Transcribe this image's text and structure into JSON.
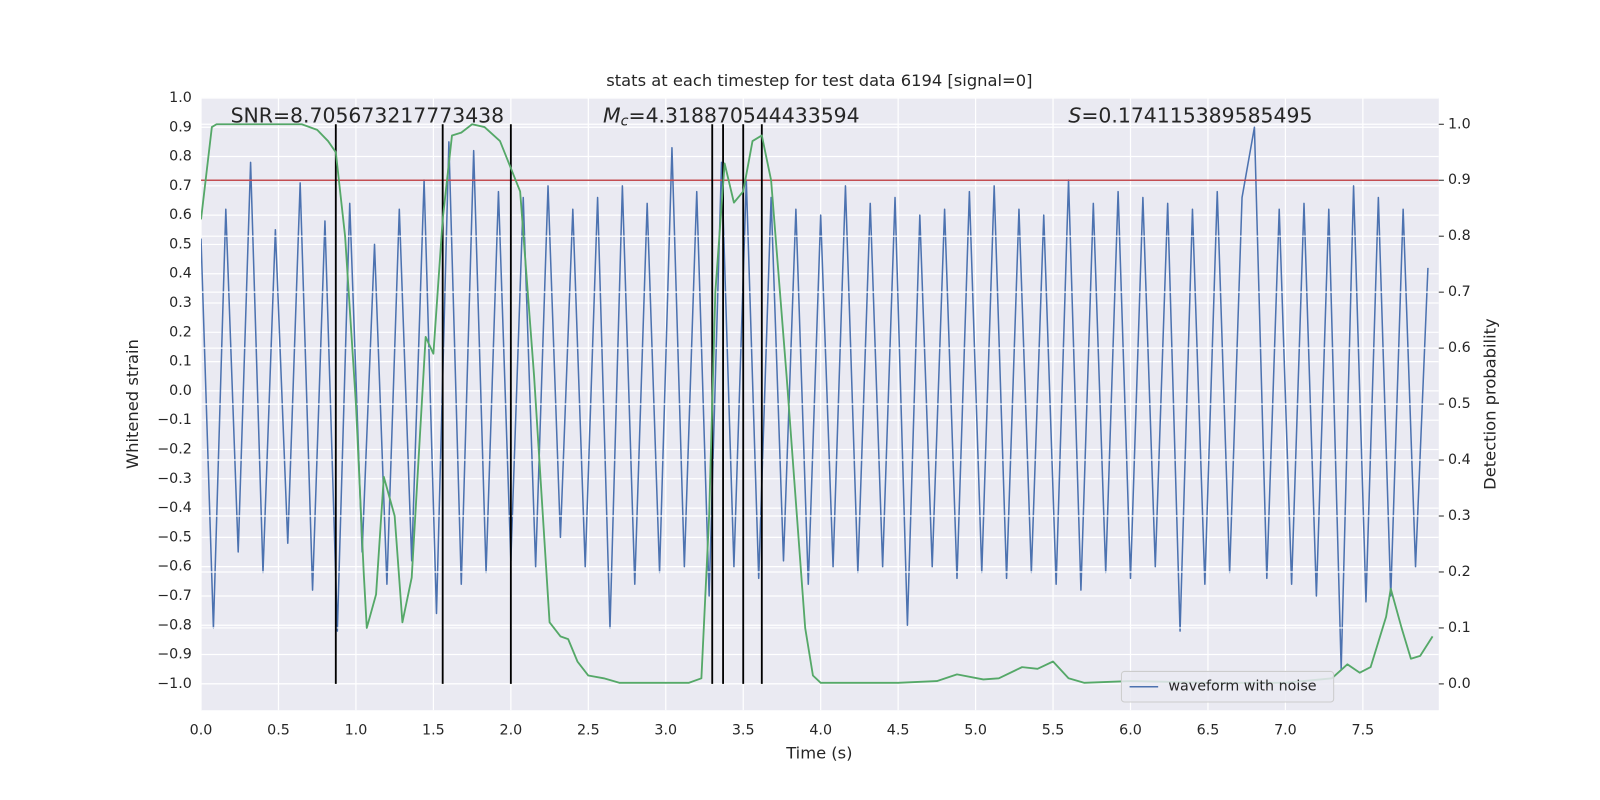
{
  "chart_data": {
    "type": "line",
    "title": "stats at each timestep for test data 6194 [signal=0]",
    "xlabel": "Time (s)",
    "ylabel": "Whitened strain",
    "y2label": "Detection probability",
    "xlim": [
      0,
      7.99
    ],
    "ylim": [
      -1.09,
      1.0
    ],
    "y2lim": [
      -0.047,
      1.047
    ],
    "xticks": [
      {
        "value": 0,
        "label": "0.0"
      },
      {
        "value": 0.5,
        "label": "0.5"
      },
      {
        "value": 1,
        "label": "1.0"
      },
      {
        "value": 1.5,
        "label": "1.5"
      },
      {
        "value": 2,
        "label": "2.0"
      },
      {
        "value": 2.5,
        "label": "2.5"
      },
      {
        "value": 3,
        "label": "3.0"
      },
      {
        "value": 3.5,
        "label": "3.5"
      },
      {
        "value": 4,
        "label": "4.0"
      },
      {
        "value": 4.5,
        "label": "4.5"
      },
      {
        "value": 5,
        "label": "5.0"
      },
      {
        "value": 5.5,
        "label": "5.5"
      },
      {
        "value": 6,
        "label": "6.0"
      },
      {
        "value": 6.5,
        "label": "6.5"
      },
      {
        "value": 7,
        "label": "7.0"
      },
      {
        "value": 7.5,
        "label": "7.5"
      }
    ],
    "yticks": [
      {
        "value": -1,
        "label": "−1.0"
      },
      {
        "value": -0.9,
        "label": "−0.9"
      },
      {
        "value": -0.8,
        "label": "−0.8"
      },
      {
        "value": -0.7,
        "label": "−0.7"
      },
      {
        "value": -0.6,
        "label": "−0.6"
      },
      {
        "value": -0.5,
        "label": "−0.5"
      },
      {
        "value": -0.4,
        "label": "−0.4"
      },
      {
        "value": -0.3,
        "label": "−0.3"
      },
      {
        "value": -0.2,
        "label": "−0.2"
      },
      {
        "value": -0.1,
        "label": "−0.1"
      },
      {
        "value": 0,
        "label": "0.0"
      },
      {
        "value": 0.1,
        "label": "0.1"
      },
      {
        "value": 0.2,
        "label": "0.2"
      },
      {
        "value": 0.3,
        "label": "0.3"
      },
      {
        "value": 0.4,
        "label": "0.4"
      },
      {
        "value": 0.5,
        "label": "0.5"
      },
      {
        "value": 0.6,
        "label": "0.6"
      },
      {
        "value": 0.7,
        "label": "0.7"
      },
      {
        "value": 0.8,
        "label": "0.8"
      },
      {
        "value": 0.9,
        "label": "0.9"
      },
      {
        "value": 1,
        "label": "1.0"
      }
    ],
    "y2ticks": [
      {
        "value": 0,
        "label": "0.0"
      },
      {
        "value": 0.1,
        "label": "0.1"
      },
      {
        "value": 0.2,
        "label": "0.2"
      },
      {
        "value": 0.3,
        "label": "0.3"
      },
      {
        "value": 0.4,
        "label": "0.4"
      },
      {
        "value": 0.5,
        "label": "0.5"
      },
      {
        "value": 0.6,
        "label": "0.6"
      },
      {
        "value": 0.7,
        "label": "0.7"
      },
      {
        "value": 0.8,
        "label": "0.8"
      },
      {
        "value": 0.9,
        "label": "0.9"
      },
      {
        "value": 1,
        "label": "1.0"
      }
    ],
    "grid": true,
    "legend": "lower right",
    "annotations": [
      {
        "parts": [
          "SNR=8.705673217773438"
        ]
      },
      {
        "parts": [
          "M",
          "c",
          "=4.318870544433594"
        ]
      },
      {
        "parts": [
          "S",
          "=0.174115389585495"
        ]
      }
    ],
    "threshold": {
      "value": 0.9,
      "axis": "y2",
      "color": "#c44e52"
    },
    "vlines": {
      "x": [
        0.87,
        1.56,
        2.0,
        3.3,
        3.37,
        3.5,
        3.62
      ],
      "ymin": 0,
      "ymax": 1,
      "axis": "y2",
      "color": "#000000"
    },
    "series": [
      {
        "name": "waveform with noise",
        "color": "#4c72b0",
        "x": [
          0,
          0.08,
          0.16,
          0.24,
          0.32,
          0.4,
          0.48,
          0.56,
          0.64,
          0.72,
          0.8,
          0.88,
          0.96,
          1.04,
          1.12,
          1.2,
          1.28,
          1.36,
          1.44,
          1.52,
          1.6,
          1.68,
          1.76,
          1.84,
          1.92,
          2.0,
          2.08,
          2.16,
          2.24,
          2.32,
          2.4,
          2.48,
          2.56,
          2.64,
          2.72,
          2.8,
          2.88,
          2.96,
          3.04,
          3.12,
          3.2,
          3.28,
          3.36,
          3.44,
          3.52,
          3.6,
          3.68,
          3.76,
          3.84,
          3.92,
          4.0,
          4.08,
          4.16,
          4.24,
          4.32,
          4.4,
          4.48,
          4.56,
          4.64,
          4.72,
          4.8,
          4.88,
          4.96,
          5.04,
          5.12,
          5.2,
          5.28,
          5.36,
          5.44,
          5.52,
          5.6,
          5.68,
          5.76,
          5.84,
          5.92,
          6.0,
          6.08,
          6.16,
          6.24,
          6.32,
          6.4,
          6.48,
          6.56,
          6.64,
          6.72,
          6.8,
          6.88,
          6.96,
          7.04,
          7.12,
          7.2,
          7.28,
          7.36,
          7.44,
          7.52,
          7.6,
          7.68,
          7.76,
          7.84,
          7.92
        ],
        "values": [
          0.52,
          -0.81,
          0.62,
          -0.55,
          0.78,
          -0.62,
          0.55,
          -0.52,
          0.71,
          -0.68,
          0.58,
          -0.82,
          0.64,
          -0.55,
          0.5,
          -0.66,
          0.62,
          -0.58,
          0.72,
          -0.76,
          0.85,
          -0.66,
          0.82,
          -0.62,
          0.68,
          -0.58,
          0.66,
          -0.6,
          0.7,
          -0.5,
          0.62,
          -0.6,
          0.66,
          -0.81,
          0.7,
          -0.66,
          0.64,
          -0.62,
          0.83,
          -0.6,
          0.68,
          -0.7,
          0.78,
          -0.6,
          0.72,
          -0.64,
          0.66,
          -0.58,
          0.62,
          -0.66,
          0.6,
          -0.6,
          0.7,
          -0.62,
          0.64,
          -0.6,
          0.66,
          -0.8,
          0.6,
          -0.6,
          0.62,
          -0.64,
          0.68,
          -0.62,
          0.7,
          -0.64,
          0.62,
          -0.62,
          0.6,
          -0.66,
          0.72,
          -0.68,
          0.64,
          -0.62,
          0.68,
          -0.64,
          0.66,
          -0.6,
          0.64,
          -0.82,
          0.62,
          -0.66,
          0.68,
          -0.62,
          0.66,
          0.9,
          -0.64,
          0.62,
          -0.66,
          0.64,
          -0.7,
          0.62,
          -0.95,
          0.7,
          -0.72,
          0.66,
          -0.7,
          0.62,
          -0.6,
          0.42
        ]
      },
      {
        "color": "#55a868",
        "axis": "y2",
        "x": [
          0,
          0.07,
          0.1,
          0.65,
          0.75,
          0.82,
          0.87,
          0.93,
          1.0,
          1.05,
          1.07,
          1.13,
          1.18,
          1.25,
          1.3,
          1.36,
          1.45,
          1.5,
          1.56,
          1.62,
          1.68,
          1.75,
          1.83,
          1.93,
          2.06,
          2.15,
          2.25,
          2.32,
          2.37,
          2.43,
          2.5,
          2.6,
          2.7,
          3.0,
          3.15,
          3.23,
          3.28,
          3.32,
          3.38,
          3.44,
          3.5,
          3.56,
          3.62,
          3.68,
          3.78,
          3.9,
          3.95,
          4.0,
          4.5,
          4.75,
          4.88,
          5.05,
          5.15,
          5.3,
          5.4,
          5.5,
          5.6,
          5.7,
          6.0,
          6.2,
          6.5,
          7.0,
          7.3,
          7.4,
          7.48,
          7.55,
          7.65,
          7.68,
          7.75,
          7.81,
          7.87,
          7.95
        ],
        "values": [
          0.83,
          0.995,
          1.0,
          1.0,
          0.99,
          0.97,
          0.95,
          0.8,
          0.5,
          0.2,
          0.1,
          0.16,
          0.37,
          0.3,
          0.11,
          0.19,
          0.62,
          0.59,
          0.83,
          0.98,
          0.985,
          1.0,
          0.995,
          0.97,
          0.88,
          0.55,
          0.11,
          0.085,
          0.08,
          0.04,
          0.015,
          0.01,
          0.002,
          0.002,
          0.002,
          0.01,
          0.3,
          0.7,
          0.93,
          0.86,
          0.88,
          0.97,
          0.98,
          0.9,
          0.55,
          0.1,
          0.015,
          0.002,
          0.002,
          0.005,
          0.017,
          0.008,
          0.01,
          0.03,
          0.027,
          0.04,
          0.01,
          0.002,
          0.005,
          0.004,
          0.002,
          0.002,
          0.01,
          0.035,
          0.02,
          0.03,
          0.12,
          0.17,
          0.1,
          0.045,
          0.05,
          0.085
        ]
      }
    ]
  }
}
